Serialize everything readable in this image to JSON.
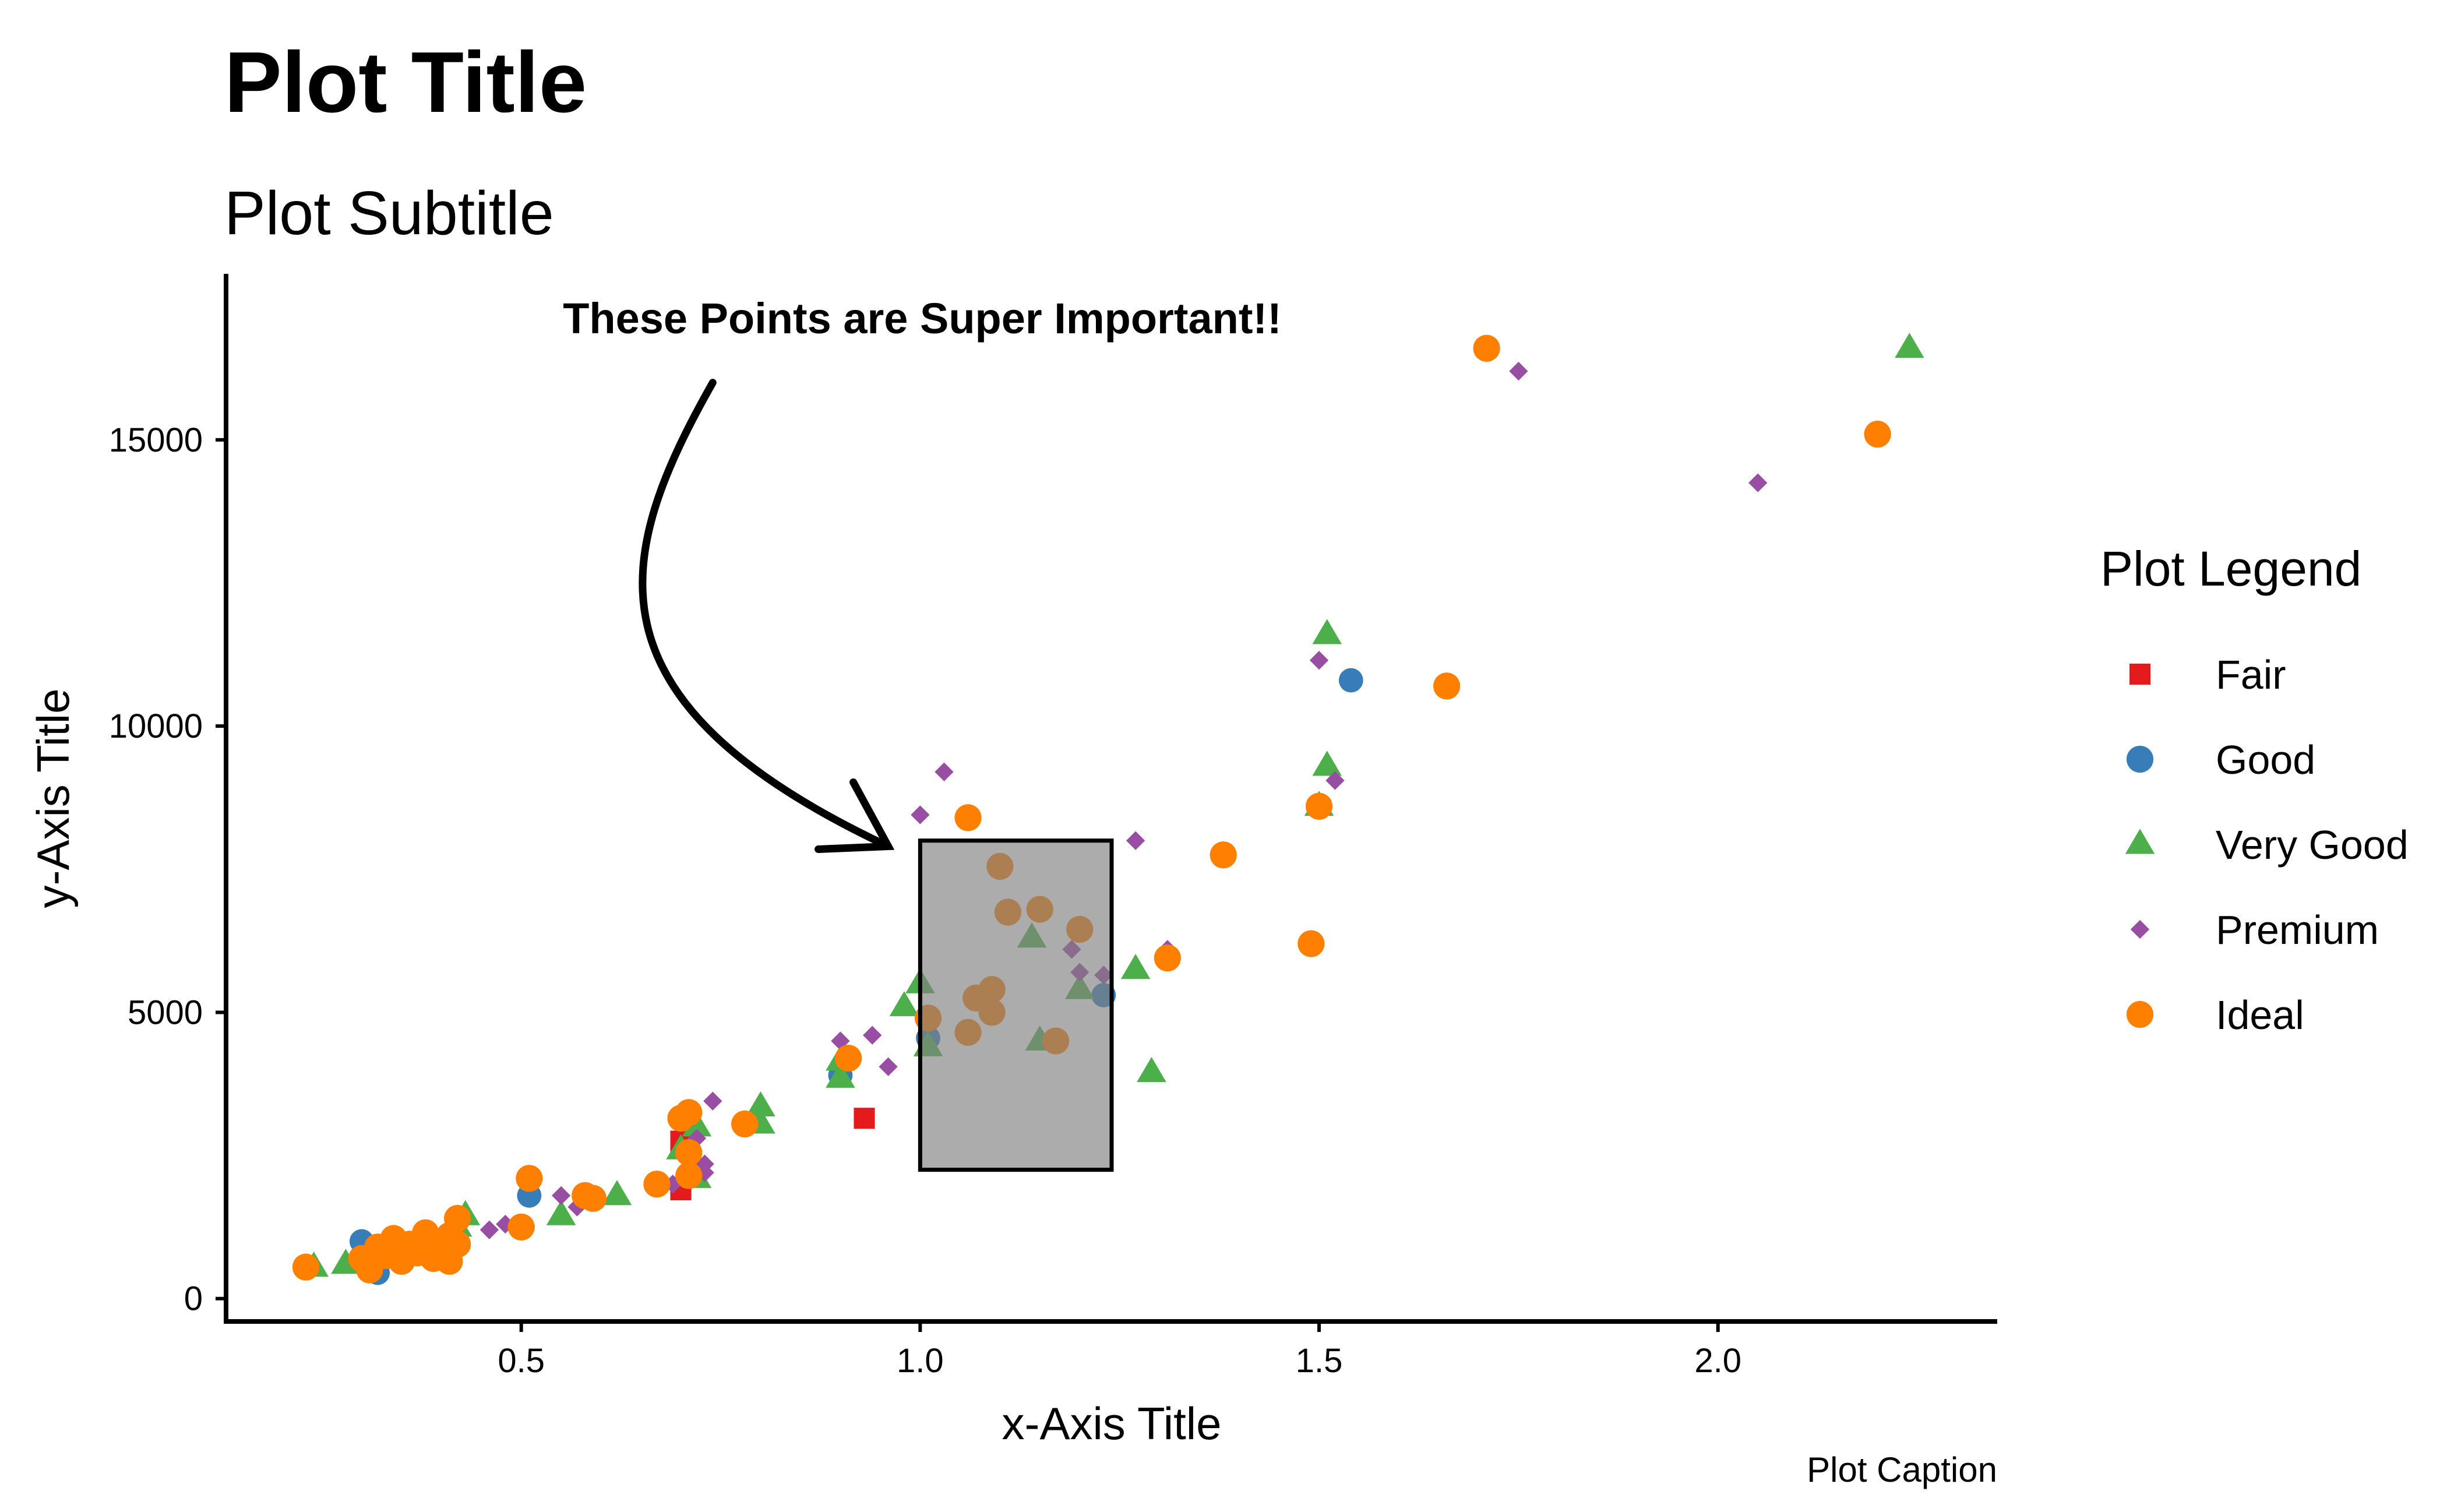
{
  "chart_data": {
    "type": "scatter",
    "title": "Plot Title",
    "subtitle": "Plot Subtitle",
    "xlabel": "x-Axis Title",
    "ylabel": "y-Axis Title",
    "caption": "Plot Caption",
    "xlim": [
      0.13,
      2.35
    ],
    "ylim": [
      -400,
      17900
    ],
    "x_ticks": [
      0.5,
      1.0,
      1.5,
      2.0
    ],
    "x_tick_labels": [
      "0.5",
      "1.0",
      "1.5",
      "2.0"
    ],
    "y_ticks": [
      0,
      5000,
      10000,
      15000
    ],
    "y_tick_labels": [
      "0",
      "5000",
      "10000",
      "15000"
    ],
    "grid": false,
    "legend": {
      "title": "Plot Legend",
      "position": "right",
      "entries": [
        "Fair",
        "Good",
        "Very Good",
        "Premium",
        "Ideal"
      ]
    },
    "annotation": {
      "text": "These Points are Super Important!!",
      "rect": {
        "xmin": 1.0,
        "xmax": 1.24,
        "ymin": 2250,
        "ymax": 8000
      },
      "arrow_from": {
        "x": 0.74,
        "y": 16000
      },
      "arrow_to": {
        "x": 0.96,
        "y": 7900
      }
    },
    "series": [
      {
        "name": "Fair",
        "shape": "square",
        "color": "#e41a1c",
        "points": [
          [
            0.7,
            2750
          ],
          [
            0.7,
            1900
          ],
          [
            0.93,
            3150
          ]
        ]
      },
      {
        "name": "Good",
        "shape": "circle",
        "color": "#377eb8",
        "points": [
          [
            0.3,
            1000
          ],
          [
            0.32,
            450
          ],
          [
            0.38,
            850
          ],
          [
            0.51,
            1800
          ],
          [
            0.9,
            3900
          ],
          [
            1.01,
            4550
          ],
          [
            1.23,
            5300
          ],
          [
            1.54,
            10800
          ]
        ]
      },
      {
        "name": "Very Good",
        "shape": "triangle",
        "color": "#4daf4a",
        "points": [
          [
            0.24,
            550
          ],
          [
            0.28,
            600
          ],
          [
            0.42,
            1250
          ],
          [
            0.43,
            1450
          ],
          [
            0.55,
            1450
          ],
          [
            0.62,
            1800
          ],
          [
            0.7,
            2600
          ],
          [
            0.72,
            2100
          ],
          [
            0.72,
            3000
          ],
          [
            0.8,
            3350
          ],
          [
            0.8,
            3050
          ],
          [
            0.9,
            3850
          ],
          [
            0.9,
            4150
          ],
          [
            0.98,
            5100
          ],
          [
            1.0,
            5500
          ],
          [
            1.01,
            4400
          ],
          [
            1.14,
            6300
          ],
          [
            1.15,
            4500
          ],
          [
            1.2,
            5400
          ],
          [
            1.27,
            5750
          ],
          [
            1.29,
            3950
          ],
          [
            1.5,
            8600
          ],
          [
            1.51,
            9300
          ],
          [
            1.51,
            11600
          ],
          [
            2.24,
            16600
          ]
        ]
      },
      {
        "name": "Premium",
        "shape": "diamond",
        "color": "#984ea3",
        "points": [
          [
            0.33,
            700
          ],
          [
            0.36,
            750
          ],
          [
            0.46,
            1200
          ],
          [
            0.48,
            1300
          ],
          [
            0.5,
            1200
          ],
          [
            0.55,
            1800
          ],
          [
            0.57,
            1600
          ],
          [
            0.69,
            2000
          ],
          [
            0.72,
            2800
          ],
          [
            0.73,
            2350
          ],
          [
            0.73,
            2200
          ],
          [
            0.74,
            3450
          ],
          [
            0.9,
            4500
          ],
          [
            0.94,
            4600
          ],
          [
            0.96,
            4050
          ],
          [
            1.0,
            8450
          ],
          [
            1.03,
            9200
          ],
          [
            1.19,
            6100
          ],
          [
            1.2,
            5700
          ],
          [
            1.23,
            5650
          ],
          [
            1.27,
            8000
          ],
          [
            1.31,
            6100
          ],
          [
            1.5,
            11150
          ],
          [
            1.52,
            9050
          ],
          [
            1.75,
            16200
          ],
          [
            2.05,
            14250
          ]
        ]
      },
      {
        "name": "Ideal",
        "shape": "circle",
        "color": "#ff7f00",
        "points": [
          [
            0.23,
            550
          ],
          [
            0.3,
            700
          ],
          [
            0.31,
            500
          ],
          [
            0.32,
            900
          ],
          [
            0.33,
            750
          ],
          [
            0.34,
            1050
          ],
          [
            0.35,
            650
          ],
          [
            0.36,
            950
          ],
          [
            0.37,
            800
          ],
          [
            0.38,
            1150
          ],
          [
            0.39,
            700
          ],
          [
            0.4,
            900
          ],
          [
            0.41,
            1100
          ],
          [
            0.41,
            650
          ],
          [
            0.42,
            950
          ],
          [
            0.42,
            1400
          ],
          [
            0.5,
            1250
          ],
          [
            0.51,
            2100
          ],
          [
            0.58,
            1800
          ],
          [
            0.59,
            1750
          ],
          [
            0.67,
            2000
          ],
          [
            0.7,
            3150
          ],
          [
            0.71,
            2150
          ],
          [
            0.71,
            2550
          ],
          [
            0.71,
            3250
          ],
          [
            0.78,
            3050
          ],
          [
            0.91,
            4200
          ],
          [
            1.01,
            4900
          ],
          [
            1.06,
            4650
          ],
          [
            1.06,
            8400
          ],
          [
            1.07,
            5250
          ],
          [
            1.09,
            5400
          ],
          [
            1.09,
            5000
          ],
          [
            1.1,
            7550
          ],
          [
            1.11,
            6750
          ],
          [
            1.15,
            6800
          ],
          [
            1.17,
            4500
          ],
          [
            1.2,
            6450
          ],
          [
            1.31,
            5950
          ],
          [
            1.38,
            7750
          ],
          [
            1.49,
            6200
          ],
          [
            1.5,
            8600
          ],
          [
            1.66,
            10700
          ],
          [
            1.71,
            16600
          ],
          [
            2.2,
            15100
          ]
        ]
      }
    ]
  }
}
